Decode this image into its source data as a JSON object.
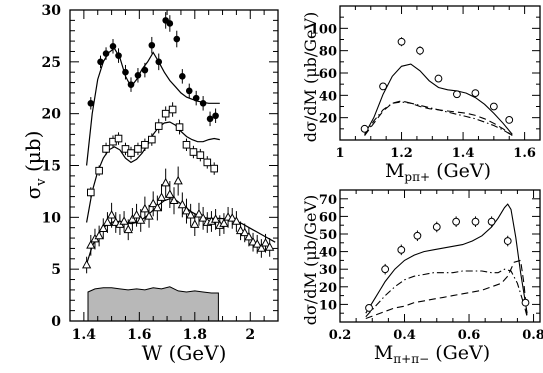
{
  "chart_data": [
    {
      "id": "left",
      "type": "scatter",
      "xlabel": "W (GeV)",
      "ylabel": "σ",
      "ylabel_sub": "v",
      "ylabel_unit": " (μb)",
      "xlim": [
        1.35,
        2.1
      ],
      "ylim": [
        0,
        30
      ],
      "xticks": [
        "1.4",
        "1.6",
        "1.8",
        "2"
      ],
      "xtick_values": [
        1.4,
        1.6,
        1.8,
        2.0
      ],
      "yticks": [
        "0",
        "5",
        "10",
        "15",
        "20",
        "25",
        "30"
      ],
      "ytick_values": [
        0,
        5,
        10,
        15,
        20,
        25,
        30
      ],
      "series": [
        {
          "marker": "filled-circle",
          "x": [
            1.425,
            1.46,
            1.48,
            1.505,
            1.525,
            1.55,
            1.57,
            1.595,
            1.62,
            1.645,
            1.67,
            1.695,
            1.71,
            1.735,
            1.755,
            1.78,
            1.805,
            1.83,
            1.855,
            1.875
          ],
          "y": [
            21.0,
            25.0,
            25.8,
            26.5,
            25.6,
            24.0,
            22.8,
            23.7,
            24.2,
            26.6,
            25.0,
            29.0,
            28.7,
            27.2,
            23.6,
            22.2,
            21.5,
            21.0,
            19.5,
            19.8
          ],
          "err": [
            0.6,
            0.6,
            0.6,
            0.7,
            0.7,
            0.7,
            0.7,
            0.7,
            0.7,
            0.8,
            0.8,
            0.8,
            0.8,
            0.8,
            0.7,
            0.7,
            0.7,
            0.7,
            0.7,
            0.7
          ]
        },
        {
          "marker": "open-square",
          "x": [
            1.425,
            1.455,
            1.48,
            1.505,
            1.525,
            1.55,
            1.57,
            1.595,
            1.62,
            1.645,
            1.67,
            1.695,
            1.72,
            1.745,
            1.77,
            1.795,
            1.82,
            1.845,
            1.87
          ],
          "y": [
            12.4,
            14.5,
            16.6,
            17.3,
            17.6,
            16.6,
            16.2,
            16.6,
            17.0,
            17.5,
            18.8,
            20.0,
            20.4,
            18.7,
            17.0,
            16.3,
            16.0,
            15.3,
            14.7
          ],
          "err": [
            0.5,
            0.5,
            0.6,
            0.6,
            0.6,
            0.6,
            0.6,
            0.6,
            0.6,
            0.6,
            0.7,
            0.7,
            0.7,
            0.7,
            0.6,
            0.6,
            0.6,
            0.6,
            0.6
          ]
        },
        {
          "marker": "open-triangle",
          "x": [
            1.41,
            1.425,
            1.44,
            1.455,
            1.47,
            1.485,
            1.5,
            1.515,
            1.53,
            1.545,
            1.56,
            1.575,
            1.59,
            1.605,
            1.62,
            1.635,
            1.65,
            1.665,
            1.68,
            1.695,
            1.71,
            1.725,
            1.74,
            1.755,
            1.77,
            1.785,
            1.8,
            1.815,
            1.83,
            1.845,
            1.86,
            1.875,
            1.89,
            1.905,
            1.92,
            1.935,
            1.95,
            1.965,
            1.98,
            1.995,
            2.01,
            2.025,
            2.04,
            2.055,
            2.07
          ],
          "y": [
            5.4,
            7.3,
            7.9,
            8.2,
            8.9,
            9.5,
            10.2,
            9.5,
            9.3,
            9.6,
            8.8,
            9.8,
            10.2,
            9.7,
            10.8,
            10.1,
            11.3,
            10.9,
            11.9,
            13.3,
            12.2,
            11.6,
            13.5,
            11.2,
            10.6,
            10.2,
            9.3,
            10.3,
            9.9,
            9.5,
            9.6,
            9.8,
            9.2,
            9.4,
            10.0,
            9.9,
            9.6,
            8.7,
            8.5,
            8.1,
            7.6,
            7.4,
            7.0,
            7.5,
            7.1
          ],
          "err": [
            0.8,
            1.0,
            1.0,
            1.0,
            1.0,
            1.0,
            1.2,
            1.0,
            1.0,
            1.0,
            1.0,
            1.1,
            1.1,
            1.1,
            1.2,
            1.1,
            1.2,
            1.2,
            1.3,
            1.4,
            1.3,
            1.3,
            1.4,
            1.2,
            1.2,
            1.1,
            1.1,
            1.1,
            1.1,
            1.0,
            1.0,
            1.0,
            1.0,
            1.0,
            1.0,
            1.0,
            1.0,
            0.9,
            0.9,
            0.9,
            0.9,
            0.9,
            0.9,
            0.9,
            0.9
          ]
        }
      ],
      "curves": [
        {
          "style": "solid",
          "x": [
            1.41,
            1.43,
            1.45,
            1.47,
            1.49,
            1.51,
            1.53,
            1.55,
            1.57,
            1.59,
            1.61,
            1.63,
            1.65,
            1.67,
            1.69,
            1.71,
            1.73,
            1.75,
            1.77,
            1.79,
            1.81,
            1.83,
            1.85,
            1.87,
            1.89
          ],
          "y": [
            15.0,
            20.0,
            23.3,
            25.0,
            25.9,
            26.3,
            25.4,
            23.6,
            22.6,
            23.3,
            24.3,
            25.0,
            25.9,
            25.0,
            24.0,
            23.2,
            22.6,
            22.0,
            21.6,
            21.4,
            21.2,
            21.1,
            21.0,
            21.0,
            21.0
          ]
        },
        {
          "style": "solid",
          "x": [
            1.41,
            1.43,
            1.45,
            1.47,
            1.49,
            1.51,
            1.53,
            1.55,
            1.57,
            1.59,
            1.61,
            1.63,
            1.65,
            1.67,
            1.69,
            1.71,
            1.73,
            1.75,
            1.77,
            1.79,
            1.81,
            1.83,
            1.85,
            1.87,
            1.89
          ],
          "y": [
            9.5,
            12.5,
            14.4,
            15.7,
            16.5,
            16.8,
            16.5,
            15.7,
            15.3,
            15.6,
            16.2,
            17.0,
            18.0,
            18.7,
            19.1,
            19.2,
            18.9,
            18.3,
            17.8,
            17.5,
            17.3,
            17.3,
            17.5,
            17.6,
            17.5
          ]
        },
        {
          "style": "solid",
          "x": [
            1.41,
            1.43,
            1.45,
            1.47,
            1.49,
            1.51,
            1.53,
            1.55,
            1.57,
            1.59,
            1.61,
            1.63,
            1.65,
            1.67,
            1.69,
            1.71,
            1.73,
            1.75,
            1.77,
            1.79,
            1.81,
            1.83,
            1.85,
            1.87,
            1.89,
            1.93,
            1.97,
            2.01,
            2.05,
            2.09
          ],
          "y": [
            5.5,
            7.2,
            8.3,
            9.0,
            9.4,
            9.6,
            9.6,
            9.5,
            9.4,
            9.5,
            9.8,
            10.2,
            10.7,
            11.2,
            11.6,
            11.8,
            11.7,
            11.3,
            10.9,
            10.5,
            10.2,
            10.0,
            9.9,
            9.9,
            9.9,
            9.8,
            9.4,
            8.8,
            8.2,
            7.6
          ]
        }
      ],
      "band": {
        "x": [
          1.415,
          1.44,
          1.47,
          1.5,
          1.53,
          1.56,
          1.59,
          1.62,
          1.65,
          1.68,
          1.71,
          1.74,
          1.77,
          1.8,
          1.83,
          1.86,
          1.885
        ],
        "y": [
          2.8,
          3.1,
          3.2,
          3.2,
          3.1,
          3.0,
          3.1,
          3.0,
          3.2,
          3.1,
          3.3,
          2.9,
          2.8,
          2.9,
          2.8,
          2.7,
          2.7
        ]
      }
    },
    {
      "id": "top-right",
      "type": "scatter",
      "xlabel": "M",
      "xlabel_sub": "pπ+",
      "xlabel_unit": " (GeV)",
      "ylabel": "dσ/dM (μb/GeV)",
      "xlim": [
        1.0,
        1.65
      ],
      "ylim": [
        0,
        120
      ],
      "xticks": [
        "1",
        "1.2",
        "1.4",
        "1.6"
      ],
      "xtick_values": [
        1.0,
        1.2,
        1.4,
        1.6
      ],
      "yticks": [
        "20",
        "40",
        "60",
        "80",
        "100"
      ],
      "ytick_values": [
        20,
        40,
        60,
        80,
        100
      ],
      "points": {
        "marker": "open-circle",
        "x": [
          1.08,
          1.14,
          1.2,
          1.26,
          1.32,
          1.38,
          1.44,
          1.5,
          1.55
        ],
        "y": [
          10,
          48,
          88,
          80,
          55,
          41,
          42,
          30,
          18
        ],
        "err": [
          2,
          3,
          4,
          4,
          3,
          3,
          3,
          3,
          3
        ]
      },
      "curves": [
        {
          "style": "solid",
          "x": [
            1.08,
            1.11,
            1.14,
            1.17,
            1.2,
            1.23,
            1.26,
            1.29,
            1.32,
            1.35,
            1.38,
            1.41,
            1.44,
            1.47,
            1.5,
            1.53,
            1.56
          ],
          "y": [
            5,
            20,
            41,
            57,
            66,
            68,
            62,
            53,
            47,
            45,
            44,
            42,
            38,
            32,
            24,
            15,
            5
          ]
        },
        {
          "style": "dashed",
          "x": [
            1.08,
            1.11,
            1.14,
            1.17,
            1.2,
            1.23,
            1.26,
            1.29,
            1.32,
            1.35,
            1.38,
            1.41,
            1.44,
            1.47,
            1.5,
            1.53,
            1.56
          ],
          "y": [
            4,
            15,
            26,
            33,
            35,
            33,
            30,
            28,
            27,
            26,
            25,
            24,
            22,
            19,
            15,
            10,
            4
          ]
        },
        {
          "style": "dashdot",
          "x": [
            1.08,
            1.11,
            1.14,
            1.17,
            1.2,
            1.23,
            1.26,
            1.29,
            1.32,
            1.35,
            1.38,
            1.41,
            1.44,
            1.47,
            1.5,
            1.53,
            1.56
          ],
          "y": [
            4,
            17,
            27,
            33,
            34,
            33,
            31,
            29,
            27,
            25,
            23,
            21,
            19,
            16,
            13,
            9,
            4
          ]
        }
      ]
    },
    {
      "id": "bottom-right",
      "type": "scatter",
      "xlabel": "M",
      "xlabel_sub": "π+π−",
      "xlabel_unit": " (GeV)",
      "ylabel": "dσ/dM (μb/GeV)",
      "xlim": [
        0.2,
        0.82
      ],
      "ylim": [
        0,
        75
      ],
      "xticks": [
        "0.2",
        "0.4",
        "0.6",
        "0.8"
      ],
      "xtick_values": [
        0.2,
        0.4,
        0.6,
        0.8
      ],
      "yticks": [
        "10",
        "20",
        "30",
        "40",
        "50",
        "60",
        "70"
      ],
      "ytick_values": [
        10,
        20,
        30,
        40,
        50,
        60,
        70
      ],
      "points": {
        "marker": "open-circle",
        "x": [
          0.29,
          0.34,
          0.39,
          0.44,
          0.5,
          0.56,
          0.62,
          0.67,
          0.72,
          0.775
        ],
        "y": [
          8,
          30,
          41,
          49,
          54,
          57,
          57,
          57,
          46,
          11
        ],
        "err": [
          2,
          3,
          3,
          3,
          3,
          3,
          3,
          3,
          3,
          2
        ]
      },
      "curves": [
        {
          "style": "solid",
          "x": [
            0.28,
            0.31,
            0.34,
            0.37,
            0.4,
            0.43,
            0.46,
            0.49,
            0.52,
            0.55,
            0.58,
            0.61,
            0.64,
            0.67,
            0.69,
            0.71,
            0.72,
            0.73,
            0.745,
            0.76,
            0.78
          ],
          "y": [
            5,
            14,
            23,
            30,
            35,
            38,
            40,
            41,
            42,
            43,
            44,
            46,
            49,
            54,
            59,
            65,
            67,
            64,
            48,
            28,
            5
          ]
        },
        {
          "style": "dashdot",
          "x": [
            0.28,
            0.31,
            0.34,
            0.37,
            0.4,
            0.43,
            0.46,
            0.49,
            0.52,
            0.55,
            0.58,
            0.61,
            0.64,
            0.67,
            0.69,
            0.71,
            0.73,
            0.75,
            0.77,
            0.78
          ],
          "y": [
            3,
            9,
            15,
            20,
            24,
            26,
            27,
            28,
            28,
            28,
            29,
            29,
            29,
            28,
            28,
            30,
            29,
            22,
            10,
            3
          ]
        },
        {
          "style": "dashed",
          "x": [
            0.28,
            0.31,
            0.34,
            0.37,
            0.4,
            0.43,
            0.46,
            0.49,
            0.52,
            0.55,
            0.58,
            0.61,
            0.64,
            0.67,
            0.7,
            0.72,
            0.74,
            0.76,
            0.77,
            0.78
          ],
          "y": [
            2,
            4,
            6,
            8,
            9,
            11,
            12,
            13,
            14,
            15,
            16,
            17,
            18,
            20,
            22,
            26,
            34,
            35,
            22,
            3
          ]
        }
      ]
    }
  ]
}
